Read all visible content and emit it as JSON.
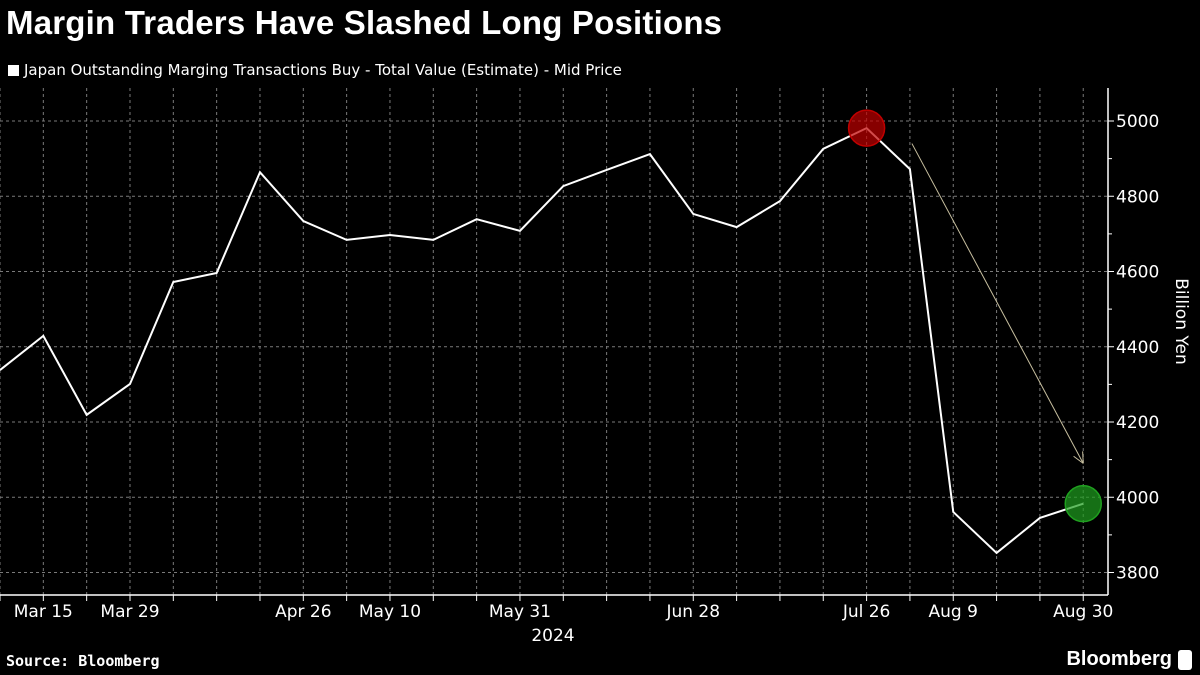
{
  "title": "Margin Traders Have Slashed Long Positions",
  "source": "Source: Bloomberg",
  "brand": "Bloomberg",
  "chart_data": {
    "type": "line",
    "title": "Margin Traders Have Slashed Long Positions",
    "ylabel": "Billion Yen",
    "xlabel": "",
    "year_label": "2024",
    "ylim": [
      3750,
      5070
    ],
    "xlim": [
      "2024-03-08",
      "2024-09-03"
    ],
    "y_ticks": [
      3800,
      4000,
      4200,
      4400,
      4600,
      4800,
      5000
    ],
    "x_tick_labels": [
      {
        "date": "2024-03-15",
        "label": "Mar 15"
      },
      {
        "date": "2024-03-29",
        "label": "Mar 29"
      },
      {
        "date": "2024-04-26",
        "label": "Apr 26"
      },
      {
        "date": "2024-05-10",
        "label": "May 10"
      },
      {
        "date": "2024-05-31",
        "label": "May 31"
      },
      {
        "date": "2024-06-28",
        "label": "Jun 28"
      },
      {
        "date": "2024-07-26",
        "label": "Jul 26"
      },
      {
        "date": "2024-08-09",
        "label": "Aug 9"
      },
      {
        "date": "2024-08-30",
        "label": "Aug 30"
      }
    ],
    "grid": true,
    "legend_position": "top-left",
    "y_axis_side": "right",
    "series": [
      {
        "name": "Japan Outstanding Marging Transactions Buy - Total Value (Estimate) - Mid Price",
        "color": "#ffffff",
        "x": [
          "2024-03-08",
          "2024-03-15",
          "2024-03-22",
          "2024-03-29",
          "2024-04-05",
          "2024-04-12",
          "2024-04-19",
          "2024-04-26",
          "2024-05-03",
          "2024-05-10",
          "2024-05-17",
          "2024-05-24",
          "2024-05-31",
          "2024-06-07",
          "2024-06-14",
          "2024-06-21",
          "2024-06-28",
          "2024-07-05",
          "2024-07-12",
          "2024-07-19",
          "2024-07-26",
          "2024-08-02",
          "2024-08-09",
          "2024-08-16",
          "2024-08-23",
          "2024-08-30"
        ],
        "values": [
          4338,
          4429,
          4219,
          4301,
          4572,
          4596,
          4864,
          4734,
          4684,
          4697,
          4684,
          4739,
          4708,
          4827,
          4870,
          4912,
          4753,
          4718,
          4787,
          4926,
          4981,
          4872,
          3961,
          3852,
          3945,
          3983
        ]
      }
    ],
    "annotations": [
      {
        "type": "circle",
        "date": "2024-07-26",
        "value": 4981,
        "color": "#c00000"
      },
      {
        "type": "circle",
        "date": "2024-08-30",
        "value": 3983,
        "color": "#1fa01f"
      },
      {
        "type": "arrow",
        "from": {
          "date": "2024-08-02",
          "value": 4940
        },
        "to": {
          "date": "2024-08-30",
          "value": 4090
        },
        "color": "#c8c0a0"
      }
    ]
  }
}
